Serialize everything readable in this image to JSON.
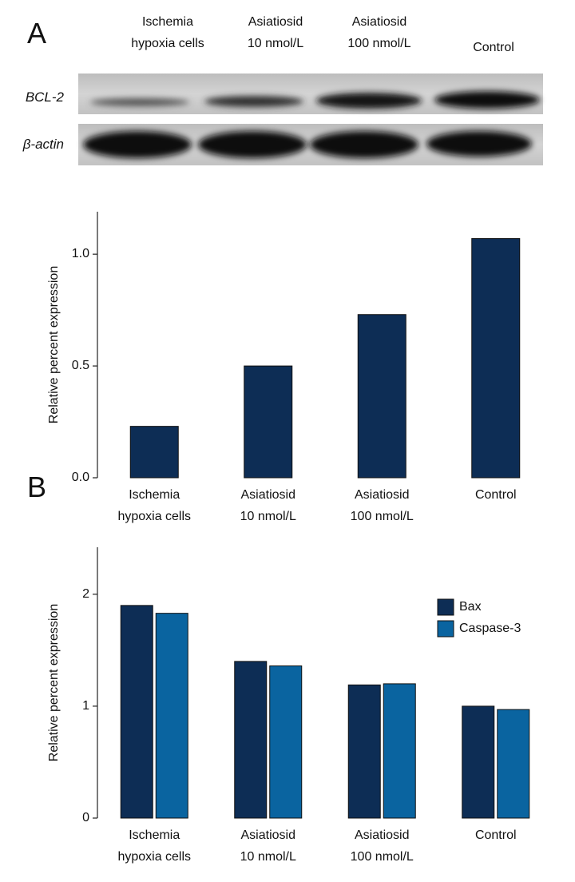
{
  "panels": [
    "A",
    "B"
  ],
  "blot": {
    "lanes": [
      "Ischemia\nhypoxia cells",
      "Asiatiosid\n10 nmol/L",
      "Asiatiosid\n100 nmol/L",
      "Control"
    ],
    "rows": [
      "BCL-2",
      "β-actin"
    ]
  },
  "chart_data": [
    {
      "type": "bar",
      "y_label": "Relative percent expression",
      "categories": [
        "Ischemia\nhypoxia cells",
        "Asiatiosid\n10 nmol/L",
        "Asiatiosid\n100 nmol/L",
        "Control"
      ],
      "values": [
        0.23,
        0.5,
        0.73,
        1.07
      ],
      "color": "#0d2d55",
      "ylim": [
        0,
        1.19
      ],
      "yticks": [
        {
          "value": 0,
          "label": "0.0"
        },
        0.5,
        {
          "value": 1,
          "label": "1.0"
        }
      ]
    },
    {
      "type": "bar",
      "y_label": "Relative percent expression",
      "categories": [
        "Ischemia\nhypoxia cells",
        "Asiatiosid\n10 nmol/L",
        "Asiatiosid\n100 nmol/L",
        "Control"
      ],
      "series": [
        {
          "name": "Bax",
          "color": "#0d2d55",
          "values": [
            1.9,
            1.4,
            1.19,
            1.0
          ]
        },
        {
          "name": "Caspase-3",
          "color": "#0a64a0",
          "values": [
            1.83,
            1.36,
            1.2,
            0.97
          ]
        }
      ],
      "ylim": [
        0,
        2.42
      ],
      "yticks": [
        0,
        1,
        2
      ],
      "legend": "upper right"
    }
  ]
}
